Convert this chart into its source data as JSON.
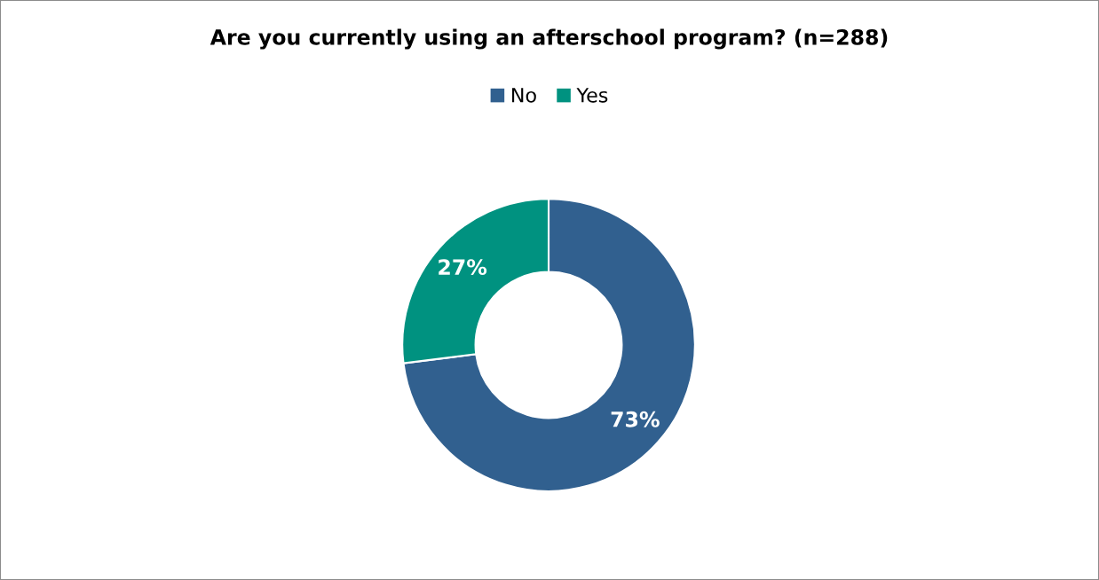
{
  "chart_data": {
    "type": "donut",
    "title": "Are you currently using an afterschool program? (n=288)",
    "categories": [
      "No",
      "Yes"
    ],
    "values": [
      73,
      27
    ],
    "colors": [
      "#31608f",
      "#009280"
    ],
    "value_labels": [
      "73%",
      "27%"
    ],
    "legend": "top"
  }
}
